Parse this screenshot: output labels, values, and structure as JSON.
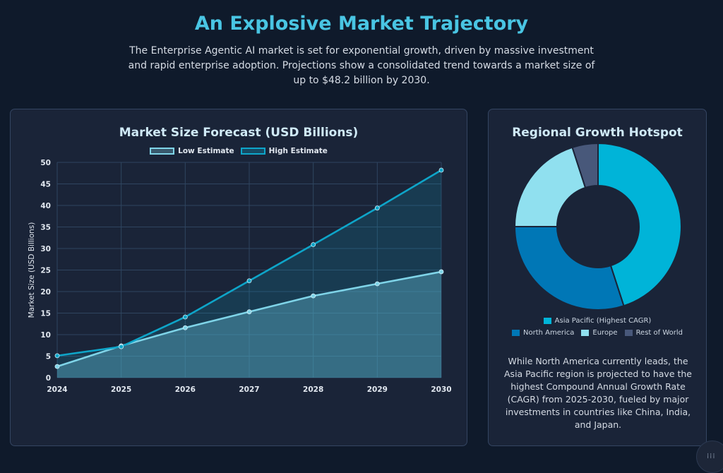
{
  "header": {
    "title": "An Explosive Market Trajectory",
    "description": "The Enterprise Agentic AI market is set for exponential growth, driven by massive investment and rapid enterprise adoption. Projections show a consolidated trend towards a market size of up to $48.2 billion by 2030."
  },
  "colors": {
    "low": "#7fd4e8",
    "high": "#0ea5c9",
    "asia_pacific": "#00b4d8",
    "north_america": "#0077b6",
    "europe": "#90e0ef",
    "rest_of_world": "#48587a"
  },
  "chart_data": [
    {
      "type": "area",
      "title": "Market Size Forecast (USD Billions)",
      "xlabel": "",
      "ylabel": "Market Size (USD Billions)",
      "categories": [
        "2024",
        "2025",
        "2026",
        "2027",
        "2028",
        "2029",
        "2030"
      ],
      "ylim": [
        0,
        50
      ],
      "yticks": [
        0,
        5,
        10,
        15,
        20,
        25,
        30,
        35,
        40,
        45,
        50
      ],
      "grid": true,
      "legend_position": "top",
      "series": [
        {
          "name": "Low Estimate",
          "values": [
            2.6,
            7.4,
            11.6,
            15.3,
            19.0,
            21.8,
            24.6
          ]
        },
        {
          "name": "High Estimate",
          "values": [
            5.1,
            7.2,
            14.1,
            22.5,
            30.9,
            39.4,
            48.2
          ]
        }
      ]
    },
    {
      "type": "pie",
      "variant": "doughnut",
      "title": "Regional Growth Hotspot",
      "legend_position": "bottom",
      "labels": [
        "Asia Pacific (Highest CAGR)",
        "North America",
        "Europe",
        "Rest of World"
      ],
      "values": [
        45,
        30,
        20,
        5
      ]
    }
  ],
  "pie_note": "While North America currently leads, the Asia Pacific region is projected to have the highest Compound Annual Growth Rate (CAGR) from 2025-2030, fueled by major investments in countries like China, India, and Japan."
}
